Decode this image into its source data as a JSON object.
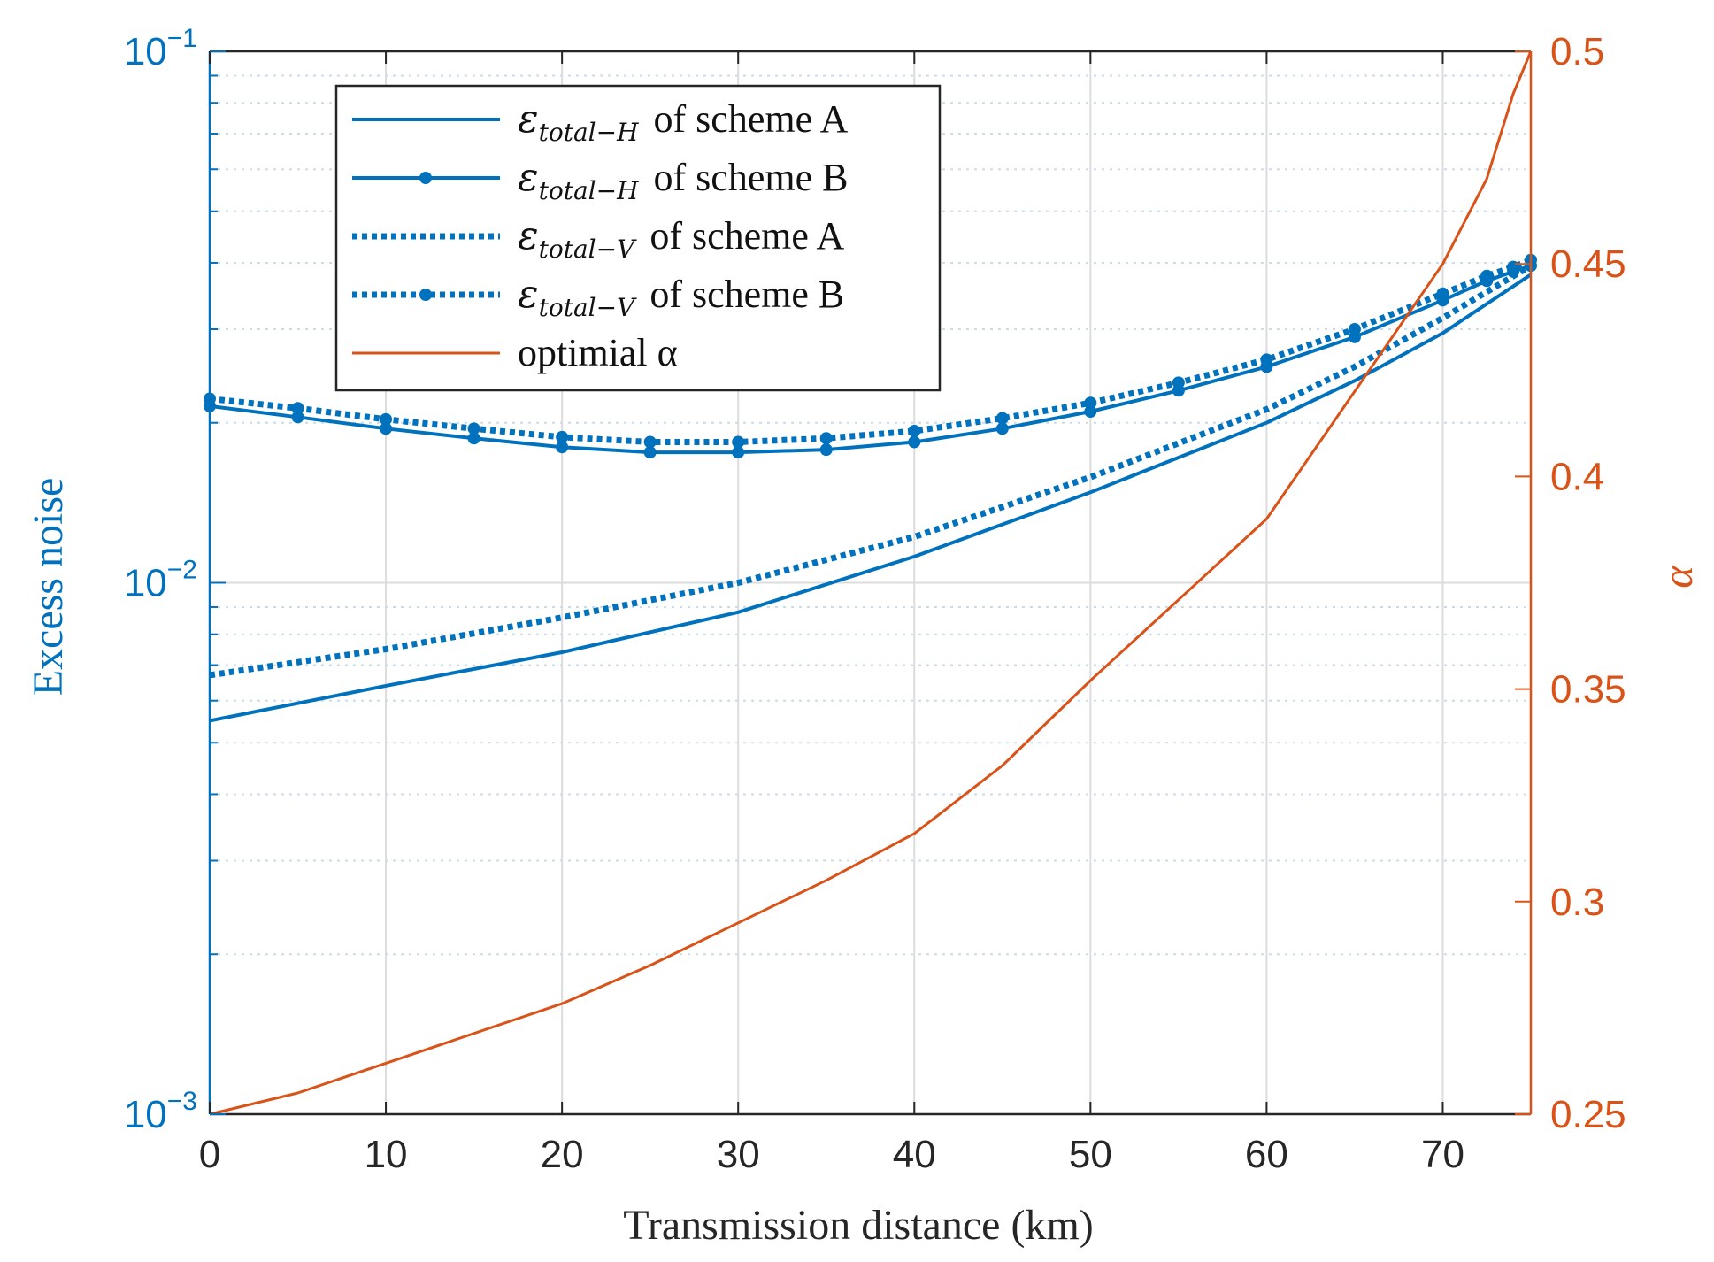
{
  "chart_data": {
    "type": "line",
    "xlabel": "Transmission distance (km)",
    "ylabel_left": "Excess noise",
    "ylabel_right": "α",
    "xlim": [
      0,
      75
    ],
    "ylim_left": [
      0.001,
      0.1
    ],
    "yscale_left": "log",
    "ylim_right": [
      0.25,
      0.5
    ],
    "grid": true,
    "x_ticks": [
      0,
      10,
      20,
      30,
      40,
      50,
      60,
      70
    ],
    "x_tick_labels": [
      "0",
      "10",
      "20",
      "30",
      "40",
      "50",
      "60",
      "70"
    ],
    "y_left_ticks": [
      {
        "base": "10",
        "exp": "−3",
        "value": 0.001
      },
      {
        "base": "10",
        "exp": "−2",
        "value": 0.01
      },
      {
        "base": "10",
        "exp": "−1",
        "value": 0.1
      }
    ],
    "y_right_ticks": [
      0.25,
      0.3,
      0.35,
      0.4,
      0.45,
      0.5
    ],
    "y_right_tick_labels": [
      "0.25",
      "0.3",
      "0.35",
      "0.4",
      "0.45",
      "0.5"
    ],
    "colors": {
      "blue": "#0072bd",
      "orange": "#d95319",
      "axis_blue": "#0072bd",
      "axis_orange": "#d95319",
      "grid": "#dcdcdc"
    },
    "series": [
      {
        "name": "ε_{total−H} of scheme A",
        "legend_symbol": "ε",
        "legend_sub": "total−H",
        "legend_tail": " of scheme A",
        "axis": "left",
        "style": "solid",
        "markers": false,
        "color": "#0072bd",
        "x": [
          0,
          10,
          20,
          30,
          40,
          50,
          60,
          65,
          70,
          75
        ],
        "values": [
          0.0055,
          0.0064,
          0.0074,
          0.0088,
          0.0112,
          0.0148,
          0.02,
          0.024,
          0.0295,
          0.038
        ]
      },
      {
        "name": "ε_{total−H} of scheme B",
        "legend_symbol": "ε",
        "legend_sub": "total−H",
        "legend_tail": " of scheme B",
        "axis": "left",
        "style": "solid",
        "markers": true,
        "color": "#0072bd",
        "x": [
          0,
          5,
          10,
          15,
          20,
          25,
          30,
          35,
          40,
          45,
          50,
          55,
          60,
          65,
          70,
          72.5,
          74,
          75
        ],
        "values": [
          0.0215,
          0.0205,
          0.0195,
          0.0187,
          0.018,
          0.0176,
          0.0176,
          0.0178,
          0.0184,
          0.0195,
          0.021,
          0.023,
          0.0255,
          0.029,
          0.034,
          0.037,
          0.0385,
          0.0395
        ]
      },
      {
        "name": "ε_{total−V} of scheme A",
        "legend_symbol": "ε",
        "legend_sub": "total−V",
        "legend_tail": " of scheme A",
        "axis": "left",
        "style": "dotted",
        "markers": false,
        "color": "#0072bd",
        "x": [
          0,
          10,
          20,
          30,
          40,
          50,
          60,
          65,
          70,
          75
        ],
        "values": [
          0.0067,
          0.0075,
          0.0086,
          0.01,
          0.0122,
          0.0158,
          0.0212,
          0.0255,
          0.0315,
          0.0395
        ]
      },
      {
        "name": "ε_{total−V} of scheme B",
        "legend_symbol": "ε",
        "legend_sub": "total−V",
        "legend_tail": " of scheme B",
        "axis": "left",
        "style": "dotted",
        "markers": true,
        "color": "#0072bd",
        "x": [
          0,
          5,
          10,
          15,
          20,
          25,
          30,
          35,
          40,
          45,
          50,
          55,
          60,
          65,
          70,
          72.5,
          74,
          75
        ],
        "values": [
          0.0222,
          0.0213,
          0.0203,
          0.0195,
          0.0188,
          0.0184,
          0.0184,
          0.0187,
          0.0193,
          0.0204,
          0.0218,
          0.0238,
          0.0263,
          0.03,
          0.035,
          0.0378,
          0.0393,
          0.0405
        ]
      },
      {
        "name": "optimial α",
        "legend_symbol": "",
        "legend_sub": "",
        "legend_tail": "optimial α",
        "axis": "right",
        "style": "solid",
        "markers": false,
        "color": "#d95319",
        "x": [
          0,
          5,
          10,
          20,
          25,
          30,
          35,
          40,
          45,
          50,
          55,
          60,
          65,
          70,
          72.5,
          74,
          75
        ],
        "values": [
          0.25,
          0.255,
          0.262,
          0.276,
          0.285,
          0.295,
          0.305,
          0.316,
          0.332,
          0.352,
          0.371,
          0.39,
          0.42,
          0.45,
          0.47,
          0.49,
          0.5
        ]
      }
    ]
  }
}
